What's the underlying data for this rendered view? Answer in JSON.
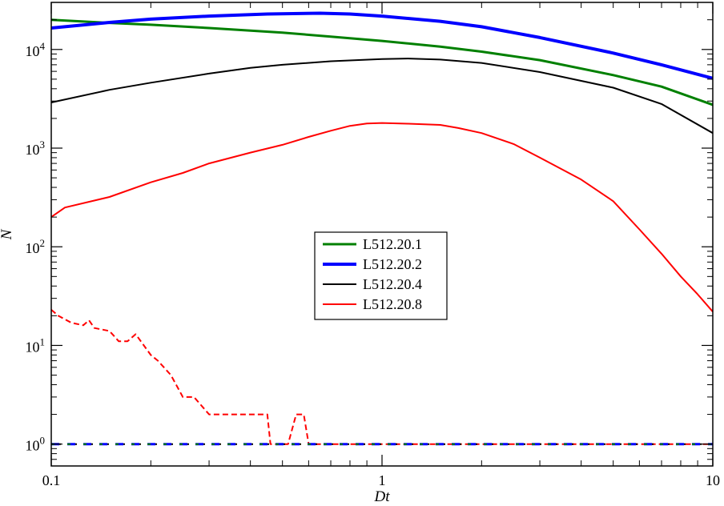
{
  "chart_data": {
    "type": "line",
    "title": "",
    "xlabel": "Dt",
    "ylabel": "N",
    "xscale": "log",
    "yscale": "log",
    "xlim": [
      0.1,
      10
    ],
    "ylim": [
      0.6,
      30000
    ],
    "grid": false,
    "legend_position": "center",
    "x_ticks": [
      {
        "value": 0.1,
        "label": "0.1"
      },
      {
        "value": 1,
        "label": "1"
      },
      {
        "value": 10,
        "label": "10"
      }
    ],
    "y_ticks": [
      {
        "value": 1,
        "base": "10",
        "exp": "0"
      },
      {
        "value": 10,
        "base": "10",
        "exp": "1"
      },
      {
        "value": 100,
        "base": "10",
        "exp": "2"
      },
      {
        "value": 1000,
        "base": "10",
        "exp": "3"
      },
      {
        "value": 10000,
        "base": "10",
        "exp": "4"
      }
    ],
    "series": [
      {
        "name": "L512.20.1",
        "color": "#008000",
        "width": 3,
        "dash": "",
        "x": [
          0.1,
          0.15,
          0.2,
          0.3,
          0.5,
          0.7,
          1,
          1.5,
          2,
          3,
          5,
          7,
          10
        ],
        "y": [
          20000,
          18600,
          17800,
          16500,
          14800,
          13500,
          12200,
          10700,
          9500,
          7800,
          5500,
          4200,
          2750
        ]
      },
      {
        "name": "L512.20.2",
        "color": "#0000ff",
        "width": 4,
        "dash": "",
        "x": [
          0.1,
          0.15,
          0.2,
          0.3,
          0.45,
          0.65,
          0.8,
          1,
          1.5,
          2,
          3,
          5,
          7,
          10
        ],
        "y": [
          16500,
          18800,
          20300,
          21800,
          22900,
          23300,
          22900,
          21800,
          19300,
          17000,
          13200,
          9200,
          7000,
          5100
        ]
      },
      {
        "name": "L512.20.4",
        "color": "#000000",
        "width": 2,
        "dash": "",
        "x": [
          0.1,
          0.15,
          0.2,
          0.3,
          0.4,
          0.5,
          0.7,
          1,
          1.2,
          1.5,
          2,
          3,
          5,
          7,
          10
        ],
        "y": [
          2900,
          3900,
          4600,
          5700,
          6500,
          7000,
          7600,
          8000,
          8100,
          7900,
          7300,
          5900,
          4100,
          2800,
          1420
        ]
      },
      {
        "name": "L512.20.8",
        "color": "#ff0000",
        "width": 2,
        "dash": "",
        "x": [
          0.1,
          0.11,
          0.15,
          0.2,
          0.25,
          0.3,
          0.4,
          0.5,
          0.6,
          0.7,
          0.8,
          0.9,
          1,
          1.2,
          1.5,
          1.7,
          2,
          2.5,
          3,
          4,
          5,
          6,
          7,
          8,
          9,
          10
        ],
        "y": [
          200,
          250,
          320,
          450,
          560,
          700,
          900,
          1080,
          1300,
          1500,
          1680,
          1780,
          1800,
          1770,
          1720,
          1600,
          1420,
          1100,
          800,
          480,
          290,
          150,
          85,
          50,
          33,
          22
        ]
      },
      {
        "name": "",
        "color": "#ff0000",
        "width": 2,
        "dash": "7,4",
        "x": [
          0.1,
          0.105,
          0.115,
          0.125,
          0.13,
          0.135,
          0.15,
          0.16,
          0.17,
          0.18,
          0.2,
          0.21,
          0.23,
          0.25,
          0.27,
          0.3,
          0.34,
          0.4,
          0.45,
          0.46,
          0.52,
          0.55,
          0.58,
          0.6,
          0.65,
          0.8,
          1,
          2,
          5,
          10
        ],
        "y": [
          23,
          20,
          17,
          16,
          18,
          15,
          14,
          11,
          11,
          13,
          8,
          7,
          5,
          3,
          3,
          2,
          2,
          2,
          2,
          1,
          1,
          2,
          2,
          1,
          1,
          1,
          1,
          1,
          1,
          1
        ]
      },
      {
        "name": "",
        "color": "#000000",
        "width": 2,
        "dash": "12,8",
        "x": [
          0.1,
          10
        ],
        "y": [
          1,
          1
        ]
      },
      {
        "name": "",
        "color": "#0000ff",
        "width": 3,
        "dash": "10,10",
        "x": [
          0.1,
          10
        ],
        "y": [
          1,
          1
        ]
      },
      {
        "name": "",
        "color": "#008000",
        "width": 2,
        "dash": "4,16",
        "x": [
          0.1,
          10
        ],
        "y": [
          1,
          1
        ]
      }
    ]
  }
}
